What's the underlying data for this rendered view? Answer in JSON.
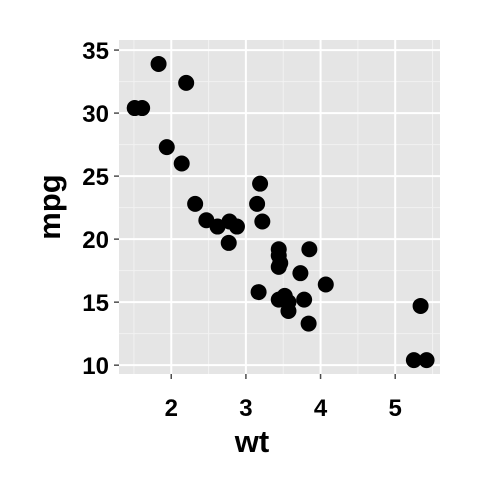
{
  "chart_data": {
    "type": "scatter",
    "xlabel": "wt",
    "ylabel": "mpg",
    "xlim": [
      1.3,
      5.6
    ],
    "ylim": [
      9.3,
      35.8
    ],
    "x_ticks": [
      2,
      3,
      4,
      5
    ],
    "y_ticks": [
      10,
      15,
      20,
      25,
      30,
      35
    ],
    "x_tick_labels": [
      "2",
      "3",
      "4",
      "5"
    ],
    "y_tick_labels": [
      "10",
      "15",
      "20",
      "25",
      "30",
      "35"
    ],
    "grid": true,
    "colors": {
      "panel_background": "#e5e5e5",
      "grid_major": "#ffffff",
      "grid_minor": "#f2f2f2",
      "point": "#000000",
      "tick": "#4d4d4d",
      "text": "#000000"
    },
    "points": [
      {
        "x": 1.51,
        "y": 30.4
      },
      {
        "x": 1.61,
        "y": 30.4
      },
      {
        "x": 1.83,
        "y": 33.9
      },
      {
        "x": 2.2,
        "y": 32.4
      },
      {
        "x": 1.94,
        "y": 27.3
      },
      {
        "x": 2.14,
        "y": 26.0
      },
      {
        "x": 2.32,
        "y": 22.8
      },
      {
        "x": 2.47,
        "y": 21.5
      },
      {
        "x": 2.62,
        "y": 21.0
      },
      {
        "x": 2.78,
        "y": 21.4
      },
      {
        "x": 2.88,
        "y": 21.0
      },
      {
        "x": 2.77,
        "y": 19.7
      },
      {
        "x": 3.15,
        "y": 22.8
      },
      {
        "x": 3.19,
        "y": 24.4
      },
      {
        "x": 3.22,
        "y": 21.4
      },
      {
        "x": 3.17,
        "y": 15.8
      },
      {
        "x": 3.44,
        "y": 19.2
      },
      {
        "x": 3.44,
        "y": 18.7
      },
      {
        "x": 3.46,
        "y": 18.1
      },
      {
        "x": 3.44,
        "y": 17.8
      },
      {
        "x": 3.44,
        "y": 15.2
      },
      {
        "x": 3.52,
        "y": 15.5
      },
      {
        "x": 3.57,
        "y": 15.0
      },
      {
        "x": 3.57,
        "y": 14.3
      },
      {
        "x": 3.73,
        "y": 17.3
      },
      {
        "x": 3.78,
        "y": 15.2
      },
      {
        "x": 3.84,
        "y": 13.3
      },
      {
        "x": 3.85,
        "y": 19.2
      },
      {
        "x": 4.07,
        "y": 16.4
      },
      {
        "x": 5.25,
        "y": 10.4
      },
      {
        "x": 5.42,
        "y": 10.4
      },
      {
        "x": 5.34,
        "y": 14.7
      }
    ]
  }
}
